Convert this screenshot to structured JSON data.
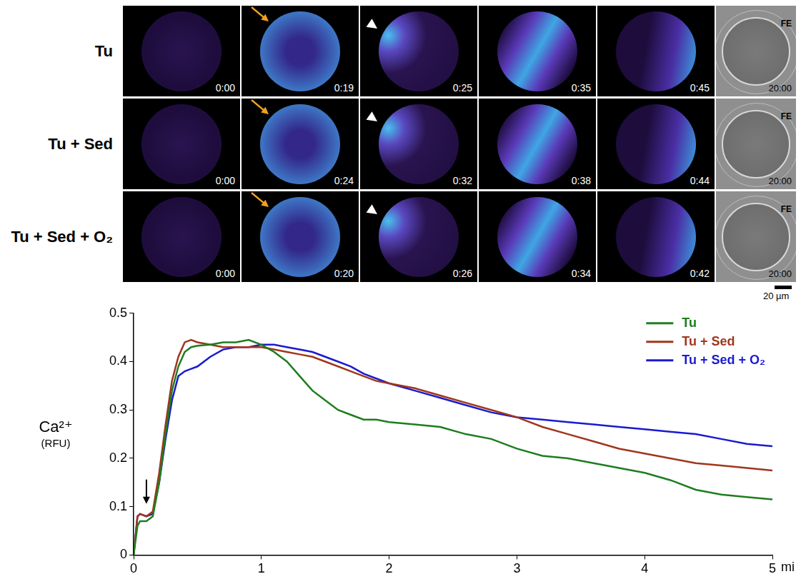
{
  "figure": {
    "rows": [
      {
        "label": "Tu",
        "times": [
          "0:00",
          "0:19",
          "0:25",
          "0:35",
          "0:45"
        ],
        "brightfield": {
          "label": "FE",
          "time": "20:00"
        }
      },
      {
        "label": "Tu + Sed",
        "times": [
          "0:00",
          "0:24",
          "0:32",
          "0:38",
          "0:44"
        ],
        "brightfield": {
          "label": "FE",
          "time": "20:00"
        }
      },
      {
        "label": "Tu + Sed + O₂",
        "times": [
          "0:00",
          "0:20",
          "0:26",
          "0:34",
          "0:42"
        ],
        "brightfield": {
          "label": "FE",
          "time": "20:00"
        }
      }
    ],
    "scale_bar": "20 µm"
  },
  "chart_data": {
    "type": "line",
    "y_label": [
      "Ca²⁺",
      "(RFU)"
    ],
    "x_label": "mi",
    "x": [
      0,
      0.03,
      0.05,
      0.1,
      0.15,
      0.2,
      0.25,
      0.3,
      0.35,
      0.4,
      0.45,
      0.5,
      0.6,
      0.7,
      0.8,
      0.9,
      1.0,
      1.1,
      1.2,
      1.3,
      1.4,
      1.5,
      1.6,
      1.7,
      1.8,
      1.9,
      2.0,
      2.2,
      2.4,
      2.6,
      2.8,
      3.0,
      3.2,
      3.4,
      3.6,
      3.8,
      4.0,
      4.2,
      4.4,
      4.6,
      4.8,
      5.0
    ],
    "series": [
      {
        "name": "Tu",
        "color": "#1e7d1e",
        "values": [
          0,
          0.06,
          0.07,
          0.07,
          0.08,
          0.15,
          0.25,
          0.34,
          0.39,
          0.42,
          0.43,
          0.433,
          0.435,
          0.44,
          0.44,
          0.445,
          0.435,
          0.42,
          0.4,
          0.37,
          0.34,
          0.32,
          0.3,
          0.29,
          0.28,
          0.28,
          0.275,
          0.27,
          0.265,
          0.25,
          0.24,
          0.22,
          0.205,
          0.2,
          0.19,
          0.18,
          0.17,
          0.155,
          0.135,
          0.125,
          0.12,
          0.115
        ]
      },
      {
        "name": "Tu + Sed",
        "color": "#a0361c",
        "values": [
          0,
          0.08,
          0.085,
          0.08,
          0.09,
          0.17,
          0.27,
          0.36,
          0.41,
          0.44,
          0.445,
          0.44,
          0.435,
          0.43,
          0.43,
          0.43,
          0.43,
          0.425,
          0.42,
          0.415,
          0.41,
          0.4,
          0.39,
          0.38,
          0.37,
          0.36,
          0.355,
          0.345,
          0.33,
          0.315,
          0.3,
          0.285,
          0.265,
          0.25,
          0.235,
          0.22,
          0.21,
          0.2,
          0.19,
          0.185,
          0.18,
          0.175
        ]
      },
      {
        "name": "Tu + Sed + O₂",
        "color": "#1a1ad0",
        "values": [
          0,
          0.08,
          0.085,
          0.08,
          0.085,
          0.15,
          0.24,
          0.32,
          0.37,
          0.38,
          0.385,
          0.39,
          0.41,
          0.425,
          0.43,
          0.43,
          0.435,
          0.435,
          0.43,
          0.425,
          0.42,
          0.41,
          0.4,
          0.39,
          0.375,
          0.365,
          0.355,
          0.34,
          0.325,
          0.31,
          0.295,
          0.285,
          0.28,
          0.275,
          0.27,
          0.265,
          0.26,
          0.255,
          0.25,
          0.24,
          0.23,
          0.225
        ]
      }
    ],
    "xlim": [
      0,
      5
    ],
    "xticks": [
      0,
      1,
      2,
      3,
      4,
      5
    ],
    "ylim": [
      0,
      0.5
    ],
    "yticks": [
      0,
      0.1,
      0.2,
      0.3,
      0.4,
      0.5
    ],
    "grid": false,
    "legend": "upper right",
    "annotations": [
      {
        "x": 0.1,
        "y": 0.1,
        "marker": "arrow"
      }
    ]
  }
}
